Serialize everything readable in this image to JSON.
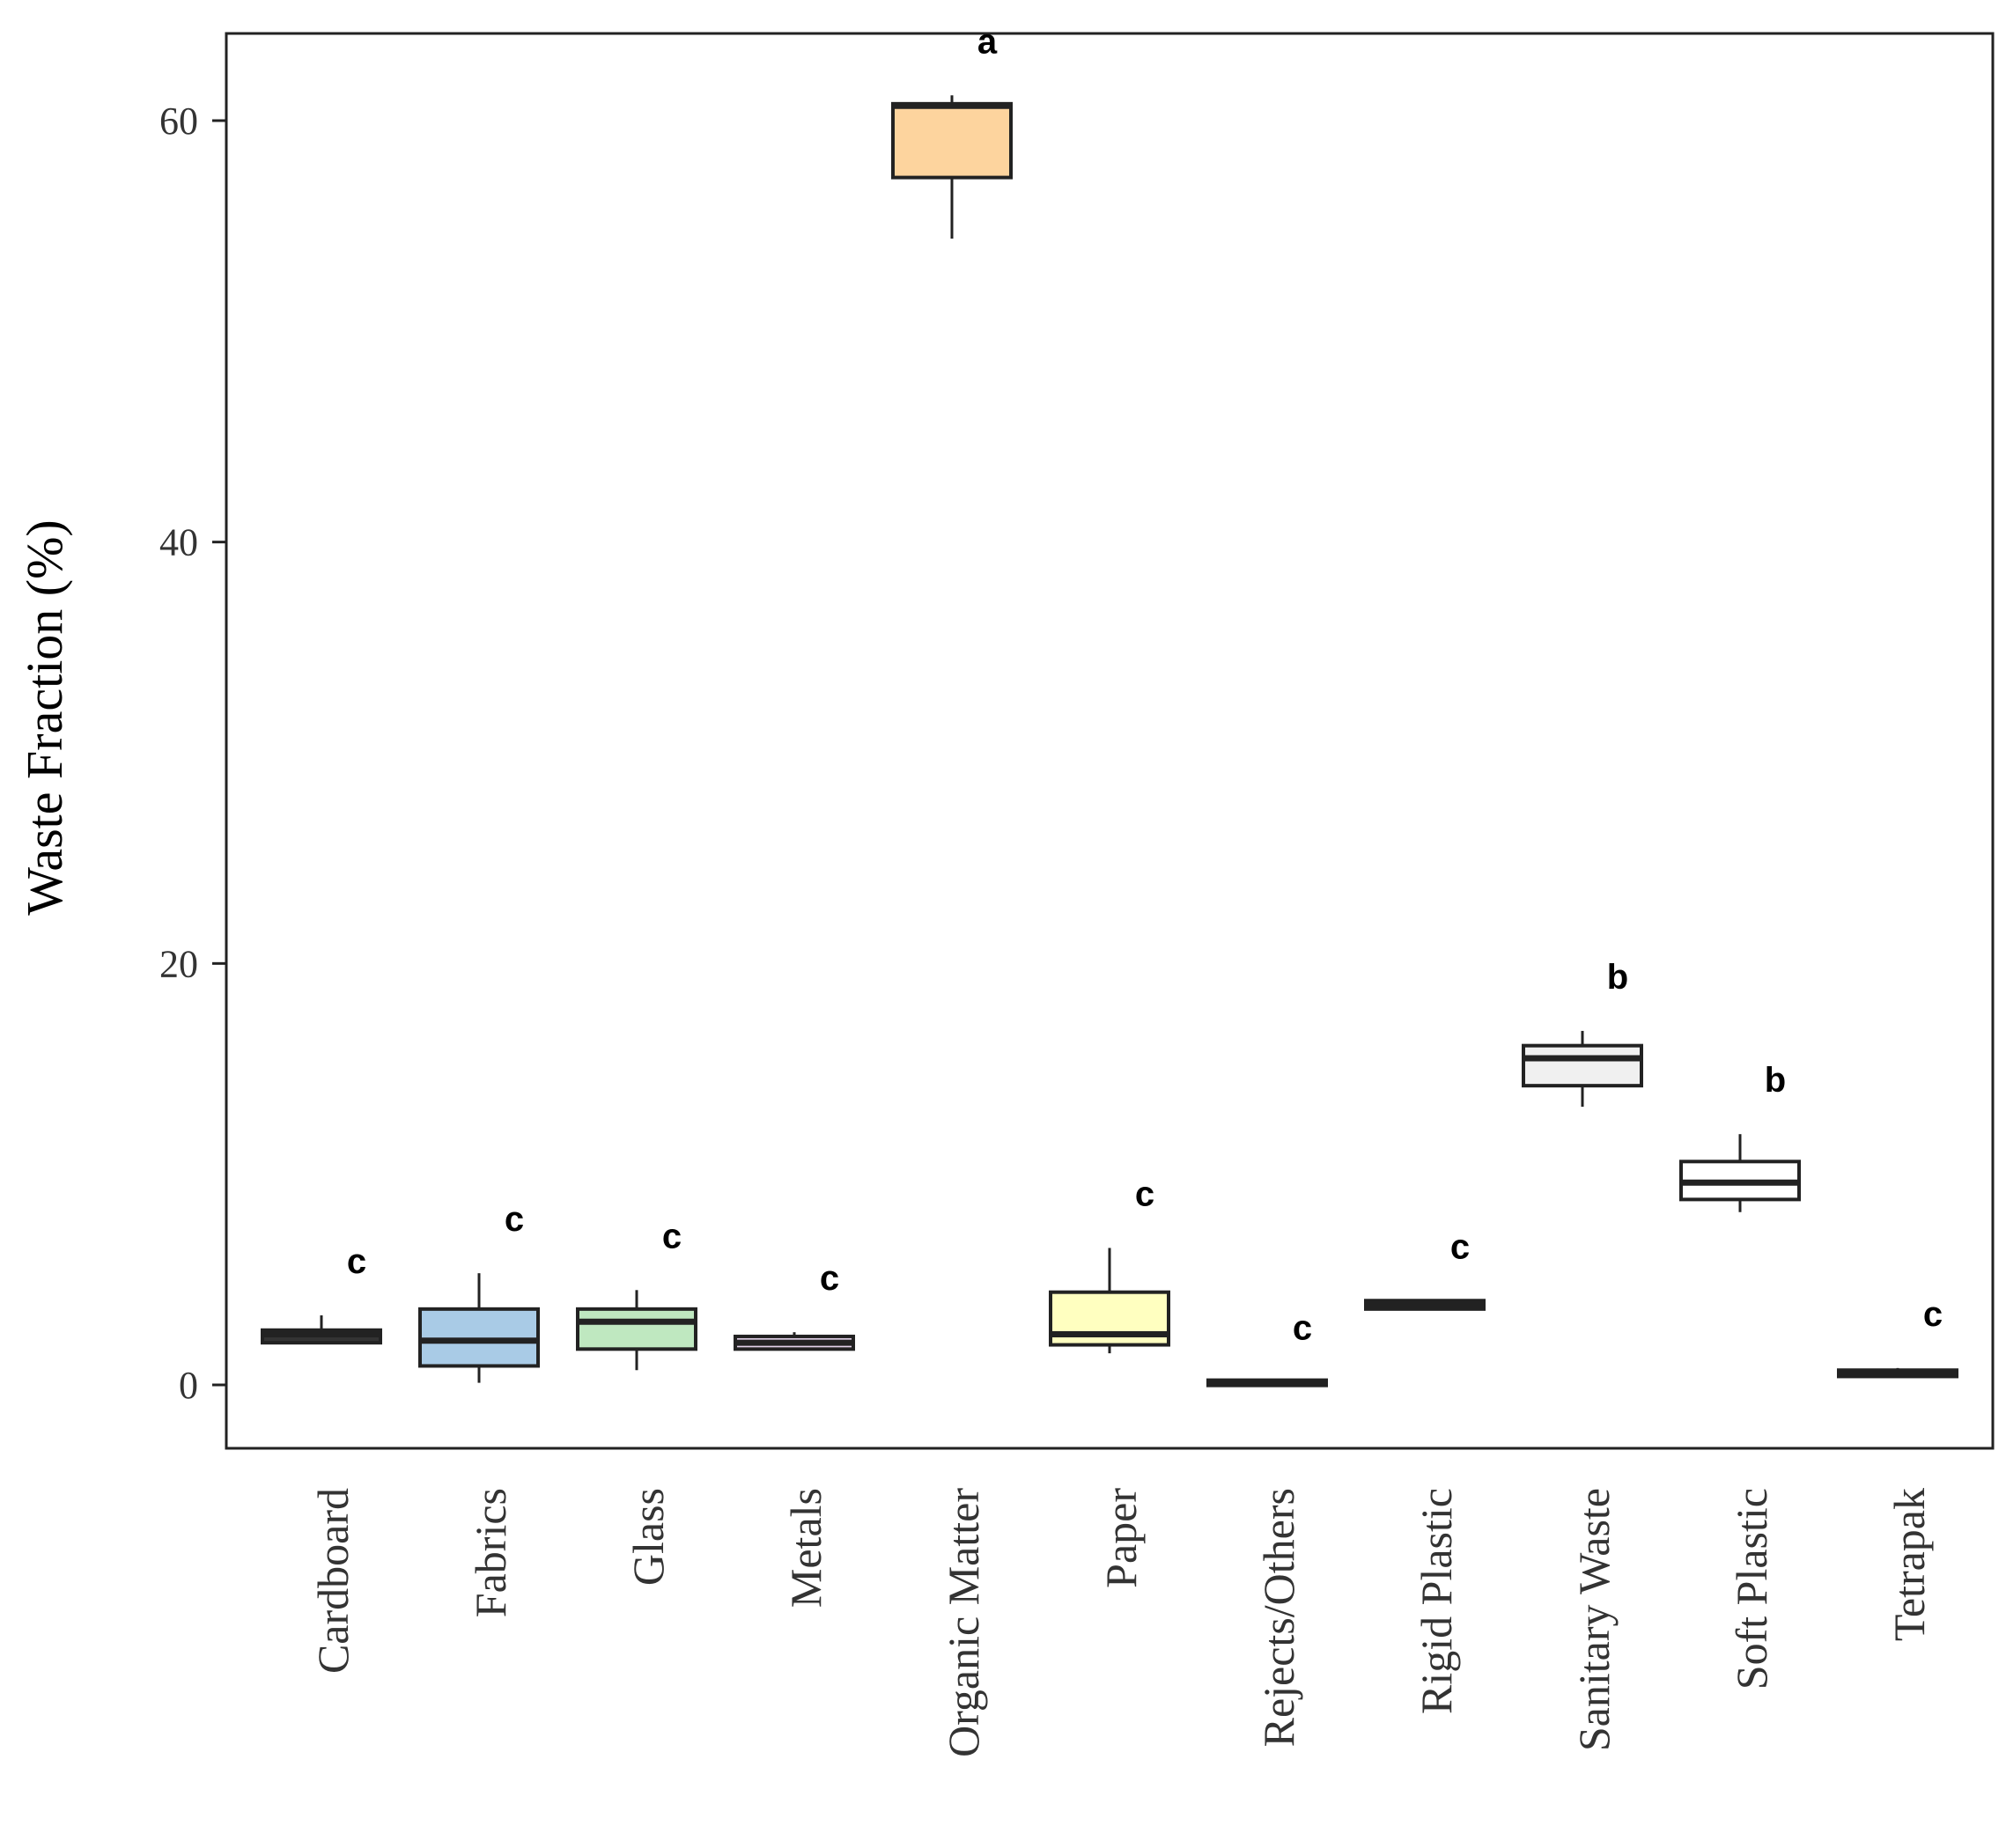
{
  "chart_data": {
    "type": "box",
    "title": "",
    "xlabel": "",
    "ylabel": "Waste Fraction (%)",
    "ylim": [
      -3,
      64
    ],
    "yticks": [
      0,
      20,
      40,
      60
    ],
    "grid": false,
    "categories": [
      {
        "name": "Cardboard",
        "min": 2.0,
        "q1": 2.0,
        "median": 2.4,
        "q3": 2.6,
        "max": 3.3,
        "sig": "c",
        "color": "#333333"
      },
      {
        "name": "Fabrics",
        "min": 0.1,
        "q1": 0.9,
        "median": 2.1,
        "q3": 3.6,
        "max": 5.3,
        "sig": "c",
        "color": "#a9cbe6"
      },
      {
        "name": "Glass",
        "min": 0.7,
        "q1": 1.7,
        "median": 3.0,
        "q3": 3.6,
        "max": 4.5,
        "sig": "c",
        "color": "#bfe8c0"
      },
      {
        "name": "Metals",
        "min": 1.7,
        "q1": 1.7,
        "median": 2.0,
        "q3": 2.3,
        "max": 2.5,
        "sig": "c",
        "color": "#e4d3ea"
      },
      {
        "name": "Organic Matter",
        "min": 54.4,
        "q1": 57.3,
        "median": 60.7,
        "q3": 60.8,
        "max": 61.2,
        "sig": "a",
        "color": "#fdd49e"
      },
      {
        "name": "Paper",
        "min": 1.5,
        "q1": 1.9,
        "median": 2.4,
        "q3": 4.4,
        "max": 6.5,
        "sig": "c",
        "color": "#ffffc0"
      },
      {
        "name": "Rejects/Others",
        "min": 0.05,
        "q1": 0.05,
        "median": 0.1,
        "q3": 0.15,
        "max": 0.15,
        "sig": "c",
        "color": "#333333"
      },
      {
        "name": "Rigid Plastic",
        "min": 3.6,
        "q1": 3.6,
        "median": 3.8,
        "q3": 4.0,
        "max": 4.0,
        "sig": "c",
        "color": "#333333"
      },
      {
        "name": "Sanitary Waste",
        "min": 13.2,
        "q1": 14.2,
        "median": 15.5,
        "q3": 16.1,
        "max": 16.8,
        "sig": "b",
        "color": "#f0f0f0"
      },
      {
        "name": "Soft Plastic",
        "min": 8.2,
        "q1": 8.8,
        "median": 9.6,
        "q3": 10.6,
        "max": 11.9,
        "sig": "b",
        "color": "#ffffff"
      },
      {
        "name": "Tetrapak",
        "min": 0.4,
        "q1": 0.4,
        "median": 0.55,
        "q3": 0.7,
        "max": 0.8,
        "sig": "c",
        "color": "#333333"
      }
    ]
  }
}
